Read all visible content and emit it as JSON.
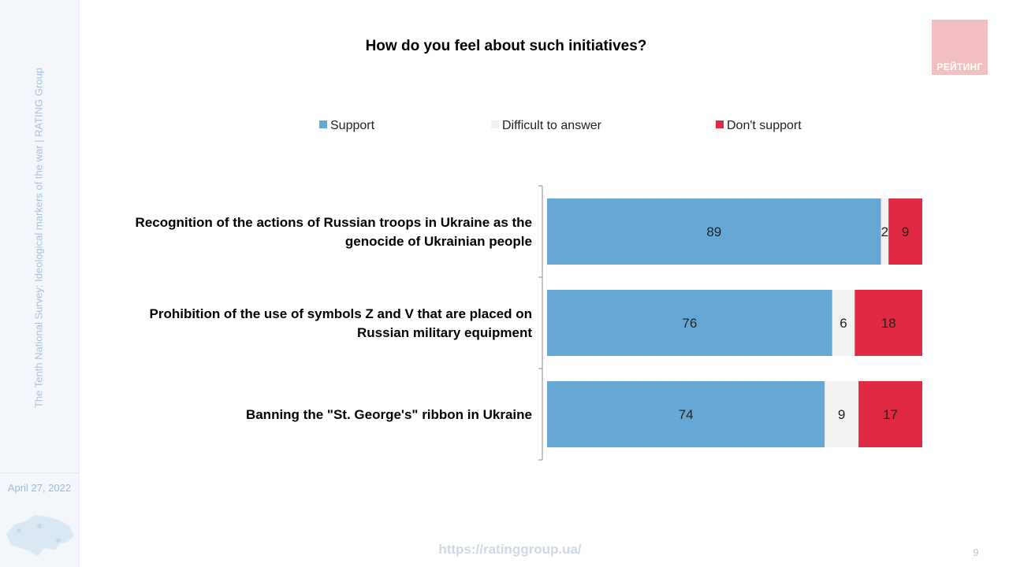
{
  "sidebar": {
    "vertical_text": "The Tenth National Survey: Ideological markers of the war | RATING Group",
    "date": "April 27, 2022"
  },
  "logo": {
    "text": "РЕЙТИНГ",
    "color": "#f2bfc0"
  },
  "footer": {
    "url": "https://ratinggroup.ua/",
    "page": "9"
  },
  "chart_data": {
    "type": "bar",
    "orientation": "horizontal",
    "stacked": true,
    "title": "How do you feel about such initiatives?",
    "legend_position": "top",
    "grid": false,
    "xlim": [
      0,
      100
    ],
    "categories": [
      "Recognition of the actions of Russian troops in Ukraine as the genocide of Ukrainian people",
      "Prohibition of the use of symbols Z and V that are placed on Russian military equipment",
      "Banning the \"St. George's\" ribbon in Ukraine"
    ],
    "series": [
      {
        "name": "Support",
        "color": "#67a7d3",
        "values": [
          89,
          76,
          74
        ]
      },
      {
        "name": "Difficult to answer",
        "color": "#f2f2f2",
        "values": [
          2,
          6,
          9
        ]
      },
      {
        "name": "Don't support",
        "color": "#e02a43",
        "values": [
          9,
          18,
          17
        ]
      }
    ]
  }
}
